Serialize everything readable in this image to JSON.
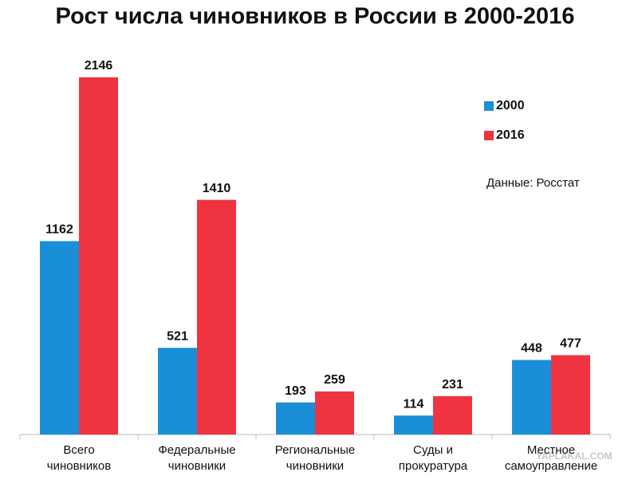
{
  "chart_data": {
    "type": "bar",
    "title": "Рост числа чиновников в России в 2000-2016",
    "annotation": "Данные: Росстат",
    "watermark": "YAPLAKAL.COM",
    "categories": [
      "Всего\nчиновников",
      "Федеральные\nчиновники",
      "Региональные\nчиновники",
      "Суды и\nпрокуратура",
      "Местное\nсамоуправление"
    ],
    "series": [
      {
        "name": "2000",
        "color": "#1a8fd8",
        "values": [
          1162,
          521,
          193,
          114,
          448
        ]
      },
      {
        "name": "2016",
        "color": "#ef3340",
        "values": [
          2146,
          1410,
          259,
          231,
          477
        ]
      }
    ],
    "legend": "upper right"
  }
}
